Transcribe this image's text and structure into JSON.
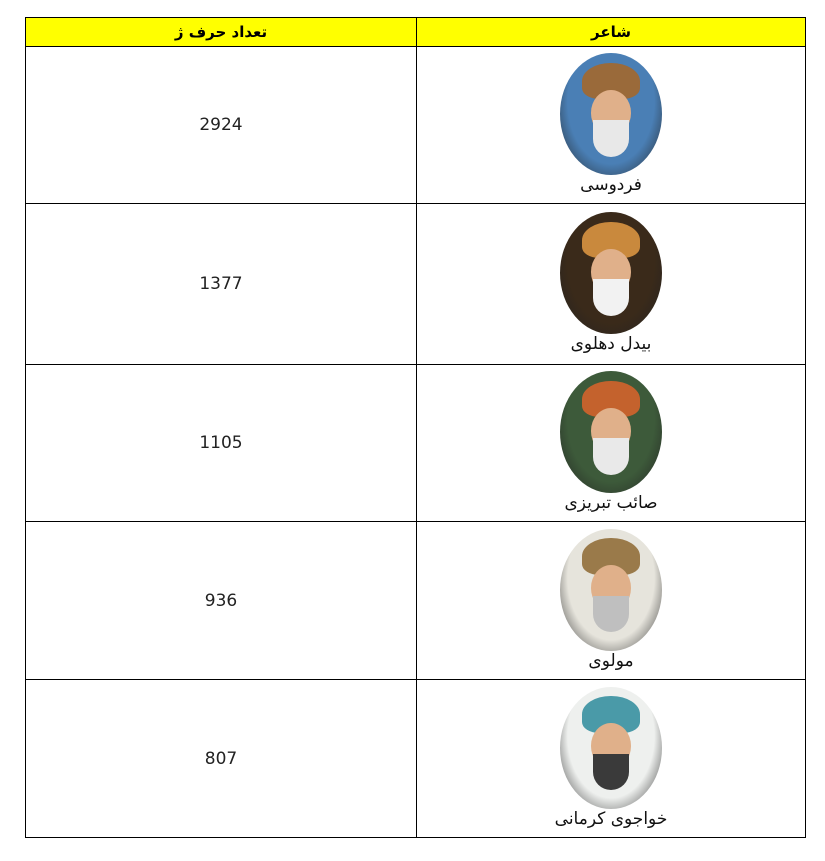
{
  "table": {
    "headers": {
      "poet": "شاعر",
      "count": "تعداد حرف ژ"
    },
    "rows": [
      {
        "poet": "فردوسی",
        "count": "2924",
        "portrait_colors": [
          "#4a7fb5",
          "#e8e8e8",
          "#9a6a3a"
        ]
      },
      {
        "poet": "بیدل دهلوی",
        "count": "1377",
        "portrait_colors": [
          "#3a2a1a",
          "#f2f2f2",
          "#c9893d"
        ]
      },
      {
        "poet": "صائب تبریزی",
        "count": "1105",
        "portrait_colors": [
          "#3d5a3a",
          "#e9e9e9",
          "#c4622d"
        ]
      },
      {
        "poet": "مولوی",
        "count": "936",
        "portrait_colors": [
          "#e6e4dc",
          "#bfbfbf",
          "#9a7a4a"
        ]
      },
      {
        "poet": "خواجوی کرمانی",
        "count": "807",
        "portrait_colors": [
          "#eef0ee",
          "#3a3a3a",
          "#4a9aa8"
        ]
      }
    ]
  }
}
